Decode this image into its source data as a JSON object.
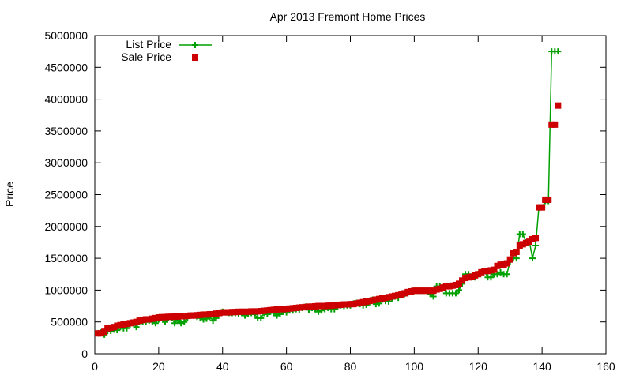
{
  "chart_data": {
    "type": "line",
    "title": "Apr 2013 Fremont Home Prices",
    "xlabel": "",
    "ylabel": "Price",
    "xlim": [
      0,
      160
    ],
    "ylim": [
      0,
      5000000
    ],
    "x_ticks": [
      "0",
      "20",
      "40",
      "60",
      "80",
      "100",
      "120",
      "140",
      "160"
    ],
    "y_ticks": [
      "0",
      "500000",
      "1000000",
      "1500000",
      "2000000",
      "2500000",
      "3000000",
      "3500000",
      "4000000",
      "4500000",
      "5000000"
    ],
    "legend_placement": "top-left",
    "grid": false,
    "colors": {
      "list_price": "#00a000",
      "sale_price": "#cc0000",
      "axis": "#000000"
    },
    "series": [
      {
        "name": "List Price",
        "style": "line-with-plus-markers",
        "points": [
          [
            1,
            320000
          ],
          [
            2,
            335000
          ],
          [
            3,
            300000
          ],
          [
            4,
            360000
          ],
          [
            5,
            360000
          ],
          [
            6,
            380000
          ],
          [
            7,
            370000
          ],
          [
            8,
            420000
          ],
          [
            9,
            400000
          ],
          [
            10,
            400000
          ],
          [
            11,
            450000
          ],
          [
            12,
            480000
          ],
          [
            13,
            420000
          ],
          [
            14,
            500000
          ],
          [
            15,
            500000
          ],
          [
            16,
            500000
          ],
          [
            17,
            520000
          ],
          [
            18,
            500000
          ],
          [
            19,
            480000
          ],
          [
            20,
            540000
          ],
          [
            21,
            560000
          ],
          [
            22,
            500000
          ],
          [
            23,
            560000
          ],
          [
            24,
            560000
          ],
          [
            25,
            480000
          ],
          [
            26,
            530000
          ],
          [
            27,
            480000
          ],
          [
            28,
            500000
          ],
          [
            29,
            560000
          ],
          [
            30,
            600000
          ],
          [
            31,
            600000
          ],
          [
            32,
            580000
          ],
          [
            33,
            560000
          ],
          [
            34,
            540000
          ],
          [
            35,
            550000
          ],
          [
            36,
            580000
          ],
          [
            37,
            520000
          ],
          [
            38,
            560000
          ],
          [
            39,
            640000
          ],
          [
            40,
            660000
          ],
          [
            41,
            650000
          ],
          [
            42,
            640000
          ],
          [
            43,
            640000
          ],
          [
            44,
            640000
          ],
          [
            45,
            620000
          ],
          [
            46,
            640000
          ],
          [
            47,
            600000
          ],
          [
            48,
            620000
          ],
          [
            49,
            640000
          ],
          [
            50,
            620000
          ],
          [
            51,
            560000
          ],
          [
            52,
            560000
          ],
          [
            53,
            640000
          ],
          [
            54,
            620000
          ],
          [
            55,
            660000
          ],
          [
            56,
            640000
          ],
          [
            57,
            600000
          ],
          [
            58,
            620000
          ],
          [
            59,
            660000
          ],
          [
            60,
            650000
          ],
          [
            61,
            680000
          ],
          [
            62,
            680000
          ],
          [
            63,
            700000
          ],
          [
            64,
            690000
          ],
          [
            65,
            720000
          ],
          [
            66,
            740000
          ],
          [
            67,
            690000
          ],
          [
            68,
            720000
          ],
          [
            69,
            700000
          ],
          [
            70,
            660000
          ],
          [
            71,
            680000
          ],
          [
            72,
            700000
          ],
          [
            73,
            720000
          ],
          [
            74,
            700000
          ],
          [
            75,
            700000
          ],
          [
            76,
            740000
          ],
          [
            77,
            760000
          ],
          [
            78,
            750000
          ],
          [
            79,
            760000
          ],
          [
            80,
            760000
          ],
          [
            81,
            790000
          ],
          [
            82,
            800000
          ],
          [
            83,
            780000
          ],
          [
            84,
            760000
          ],
          [
            85,
            770000
          ],
          [
            86,
            810000
          ],
          [
            87,
            850000
          ],
          [
            88,
            780000
          ],
          [
            89,
            790000
          ],
          [
            90,
            850000
          ],
          [
            91,
            830000
          ],
          [
            92,
            820000
          ],
          [
            93,
            870000
          ],
          [
            94,
            900000
          ],
          [
            95,
            880000
          ],
          [
            96,
            920000
          ],
          [
            97,
            940000
          ],
          [
            98,
            950000
          ],
          [
            99,
            980000
          ],
          [
            100,
            990000
          ],
          [
            101,
            990000
          ],
          [
            102,
            990000
          ],
          [
            103,
            990000
          ],
          [
            104,
            990000
          ],
          [
            105,
            940000
          ],
          [
            106,
            900000
          ],
          [
            107,
            1060000
          ],
          [
            108,
            1060000
          ],
          [
            109,
            1040000
          ],
          [
            110,
            950000
          ],
          [
            111,
            950000
          ],
          [
            112,
            950000
          ],
          [
            113,
            950000
          ],
          [
            114,
            1000000
          ],
          [
            115,
            1100000
          ],
          [
            116,
            1250000
          ],
          [
            117,
            1250000
          ],
          [
            118,
            1200000
          ],
          [
            119,
            1200000
          ],
          [
            120,
            1250000
          ],
          [
            121,
            1280000
          ],
          [
            122,
            1300000
          ],
          [
            123,
            1200000
          ],
          [
            124,
            1200000
          ],
          [
            125,
            1250000
          ],
          [
            126,
            1250000
          ],
          [
            127,
            1280000
          ],
          [
            128,
            1250000
          ],
          [
            129,
            1250000
          ],
          [
            130,
            1450000
          ],
          [
            131,
            1500000
          ],
          [
            132,
            1500000
          ],
          [
            133,
            1880000
          ],
          [
            134,
            1880000
          ],
          [
            135,
            1750000
          ],
          [
            136,
            1780000
          ],
          [
            137,
            1500000
          ],
          [
            138,
            1700000
          ],
          [
            139,
            2300000
          ],
          [
            140,
            2300000
          ],
          [
            141,
            2400000
          ],
          [
            142,
            2400000
          ],
          [
            143,
            4750000
          ],
          [
            144,
            4750000
          ],
          [
            145,
            4750000
          ]
        ]
      },
      {
        "name": "Sale Price",
        "style": "square-markers",
        "points": [
          [
            1,
            320000
          ],
          [
            2,
            320000
          ],
          [
            3,
            345000
          ],
          [
            4,
            400000
          ],
          [
            5,
            410000
          ],
          [
            6,
            420000
          ],
          [
            7,
            440000
          ],
          [
            8,
            450000
          ],
          [
            9,
            460000
          ],
          [
            10,
            470000
          ],
          [
            11,
            480000
          ],
          [
            12,
            490000
          ],
          [
            13,
            500000
          ],
          [
            14,
            520000
          ],
          [
            15,
            530000
          ],
          [
            16,
            540000
          ],
          [
            17,
            540000
          ],
          [
            18,
            550000
          ],
          [
            19,
            560000
          ],
          [
            20,
            570000
          ],
          [
            21,
            575000
          ],
          [
            22,
            575000
          ],
          [
            23,
            580000
          ],
          [
            24,
            580000
          ],
          [
            25,
            585000
          ],
          [
            26,
            585000
          ],
          [
            27,
            590000
          ],
          [
            28,
            590000
          ],
          [
            29,
            595000
          ],
          [
            30,
            600000
          ],
          [
            31,
            600000
          ],
          [
            32,
            605000
          ],
          [
            33,
            610000
          ],
          [
            34,
            615000
          ],
          [
            35,
            615000
          ],
          [
            36,
            620000
          ],
          [
            37,
            620000
          ],
          [
            38,
            630000
          ],
          [
            39,
            640000
          ],
          [
            40,
            650000
          ],
          [
            41,
            650000
          ],
          [
            42,
            650000
          ],
          [
            43,
            655000
          ],
          [
            44,
            655000
          ],
          [
            45,
            660000
          ],
          [
            46,
            660000
          ],
          [
            47,
            660000
          ],
          [
            48,
            660000
          ],
          [
            49,
            665000
          ],
          [
            50,
            665000
          ],
          [
            51,
            665000
          ],
          [
            52,
            670000
          ],
          [
            53,
            675000
          ],
          [
            54,
            680000
          ],
          [
            55,
            685000
          ],
          [
            56,
            690000
          ],
          [
            57,
            695000
          ],
          [
            58,
            700000
          ],
          [
            59,
            700000
          ],
          [
            60,
            705000
          ],
          [
            61,
            710000
          ],
          [
            62,
            715000
          ],
          [
            63,
            720000
          ],
          [
            64,
            725000
          ],
          [
            65,
            730000
          ],
          [
            66,
            735000
          ],
          [
            67,
            740000
          ],
          [
            68,
            740000
          ],
          [
            69,
            745000
          ],
          [
            70,
            750000
          ],
          [
            71,
            750000
          ],
          [
            72,
            750000
          ],
          [
            73,
            755000
          ],
          [
            74,
            755000
          ],
          [
            75,
            760000
          ],
          [
            76,
            765000
          ],
          [
            77,
            770000
          ],
          [
            78,
            775000
          ],
          [
            79,
            775000
          ],
          [
            80,
            780000
          ],
          [
            81,
            780000
          ],
          [
            82,
            790000
          ],
          [
            83,
            800000
          ],
          [
            84,
            810000
          ],
          [
            85,
            820000
          ],
          [
            86,
            830000
          ],
          [
            87,
            840000
          ],
          [
            88,
            850000
          ],
          [
            89,
            860000
          ],
          [
            90,
            870000
          ],
          [
            91,
            880000
          ],
          [
            92,
            890000
          ],
          [
            93,
            900000
          ],
          [
            94,
            910000
          ],
          [
            95,
            920000
          ],
          [
            96,
            930000
          ],
          [
            97,
            950000
          ],
          [
            98,
            970000
          ],
          [
            99,
            980000
          ],
          [
            100,
            990000
          ],
          [
            101,
            990000
          ],
          [
            102,
            990000
          ],
          [
            103,
            990000
          ],
          [
            104,
            990000
          ],
          [
            105,
            990000
          ],
          [
            106,
            990000
          ],
          [
            107,
            1010000
          ],
          [
            108,
            1020000
          ],
          [
            109,
            1040000
          ],
          [
            110,
            1060000
          ],
          [
            111,
            1060000
          ],
          [
            112,
            1070000
          ],
          [
            113,
            1080000
          ],
          [
            114,
            1100000
          ],
          [
            115,
            1150000
          ],
          [
            116,
            1190000
          ],
          [
            117,
            1200000
          ],
          [
            118,
            1210000
          ],
          [
            119,
            1230000
          ],
          [
            120,
            1250000
          ],
          [
            121,
            1280000
          ],
          [
            122,
            1300000
          ],
          [
            123,
            1300000
          ],
          [
            124,
            1310000
          ],
          [
            125,
            1320000
          ],
          [
            126,
            1380000
          ],
          [
            127,
            1400000
          ],
          [
            128,
            1400000
          ],
          [
            129,
            1420000
          ],
          [
            130,
            1480000
          ],
          [
            131,
            1580000
          ],
          [
            132,
            1600000
          ],
          [
            133,
            1700000
          ],
          [
            134,
            1720000
          ],
          [
            135,
            1740000
          ],
          [
            136,
            1760000
          ],
          [
            137,
            1800000
          ],
          [
            138,
            1820000
          ],
          [
            139,
            2300000
          ],
          [
            140,
            2300000
          ],
          [
            141,
            2420000
          ],
          [
            142,
            2420000
          ],
          [
            143,
            3600000
          ],
          [
            144,
            3600000
          ],
          [
            145,
            3900000
          ]
        ]
      }
    ]
  }
}
